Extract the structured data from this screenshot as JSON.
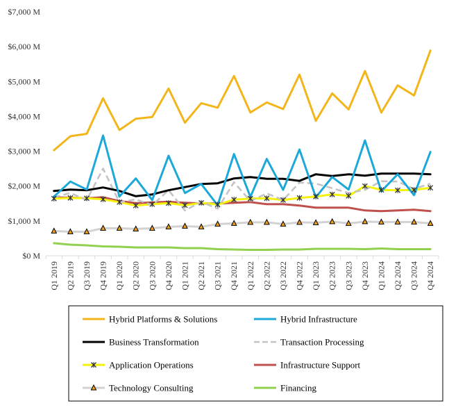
{
  "chart_data": {
    "type": "line",
    "title": "",
    "xlabel": "",
    "ylabel": "",
    "ylim": [
      0,
      7000
    ],
    "y_ticks": [
      {
        "value": 0,
        "label": "$0 M"
      },
      {
        "value": 1000,
        "label": "$1,000 M"
      },
      {
        "value": 2000,
        "label": "$2,000 M"
      },
      {
        "value": 3000,
        "label": "$3,000 M"
      },
      {
        "value": 4000,
        "label": "$4,000 M"
      },
      {
        "value": 5000,
        "label": "$5,000 M"
      },
      {
        "value": 6000,
        "label": "$6,000 M"
      },
      {
        "value": 7000,
        "label": "$7,000 M"
      }
    ],
    "grid": false,
    "legend_position": "bottom",
    "categories": [
      "Q1 2019",
      "Q2 2019",
      "Q3 2019",
      "Q4 2019",
      "Q1 2020",
      "Q2 2020",
      "Q3 2020",
      "Q4 2020",
      "Q1 2021",
      "Q2 2021",
      "Q3 2021",
      "Q4 2021",
      "Q1 2022",
      "Q2 2022",
      "Q3 2022",
      "Q4 2022",
      "Q1 2023",
      "Q2 2023",
      "Q3 2023",
      "Q4 2023",
      "Q1 2024",
      "Q2 2024",
      "Q3 2024",
      "Q4 2024"
    ],
    "series": [
      {
        "name": "Hybrid Platforms & Solutions",
        "color": "#F2B61A",
        "dash": "solid",
        "marker": "none",
        "values": [
          3030,
          3430,
          3500,
          4520,
          3610,
          3930,
          3980,
          4800,
          3820,
          4380,
          4250,
          5160,
          4110,
          4400,
          4210,
          5200,
          3870,
          4660,
          4200,
          5300,
          4110,
          4890,
          4600,
          5890
        ]
      },
      {
        "name": "Hybrid Infrastructure",
        "color": "#1CA8D8",
        "dash": "solid",
        "marker": "none",
        "values": [
          1700,
          2130,
          1900,
          3450,
          1700,
          2220,
          1600,
          2870,
          1800,
          2060,
          1450,
          2920,
          1690,
          2780,
          1890,
          3050,
          1680,
          2260,
          1900,
          3310,
          1850,
          2340,
          1740,
          2980
        ]
      },
      {
        "name": "Business Transformation",
        "color": "#000000",
        "dash": "solid",
        "marker": "none",
        "values": [
          1860,
          1900,
          1880,
          1960,
          1860,
          1710,
          1760,
          1880,
          1970,
          2060,
          2080,
          2220,
          2260,
          2210,
          2210,
          2150,
          2340,
          2290,
          2340,
          2300,
          2360,
          2360,
          2360,
          2340
        ]
      },
      {
        "name": "Transaction Processing",
        "color": "#C4C4C4",
        "dash": "dashed",
        "marker": "none",
        "values": [
          1680,
          1800,
          1600,
          2500,
          1530,
          1620,
          1450,
          1880,
          1300,
          1550,
          1350,
          2110,
          1570,
          1790,
          1600,
          2100,
          2070,
          1940,
          1800,
          1890,
          2140,
          2130,
          1920,
          2070
        ]
      },
      {
        "name": "Application Operations",
        "color": "#F4F20A",
        "dash": "solid",
        "marker": "star",
        "values": [
          1640,
          1660,
          1650,
          1620,
          1540,
          1440,
          1480,
          1510,
          1450,
          1520,
          1470,
          1610,
          1640,
          1650,
          1600,
          1660,
          1700,
          1760,
          1720,
          2000,
          1890,
          1880,
          1890,
          1950
        ]
      },
      {
        "name": "Infrastructure Support",
        "color": "#C0504D",
        "dash": "solid",
        "marker": "none",
        "values": [
          1670,
          1670,
          1650,
          1680,
          1570,
          1510,
          1530,
          1550,
          1520,
          1500,
          1500,
          1520,
          1540,
          1480,
          1480,
          1440,
          1380,
          1380,
          1380,
          1300,
          1280,
          1300,
          1320,
          1280
        ]
      },
      {
        "name": "Technology Consulting",
        "color": "#D2D2D2",
        "dash": "solid",
        "marker": "triangle",
        "values": [
          710,
          690,
          690,
          790,
          790,
          770,
          790,
          830,
          850,
          830,
          910,
          930,
          960,
          960,
          910,
          960,
          950,
          980,
          930,
          980,
          970,
          970,
          970,
          930
        ]
      },
      {
        "name": "Financing",
        "color": "#92D050",
        "dash": "solid",
        "marker": "none",
        "values": [
          360,
          320,
          300,
          270,
          260,
          240,
          240,
          240,
          220,
          220,
          190,
          180,
          170,
          170,
          180,
          180,
          200,
          200,
          200,
          190,
          210,
          190,
          190,
          190
        ]
      }
    ]
  }
}
